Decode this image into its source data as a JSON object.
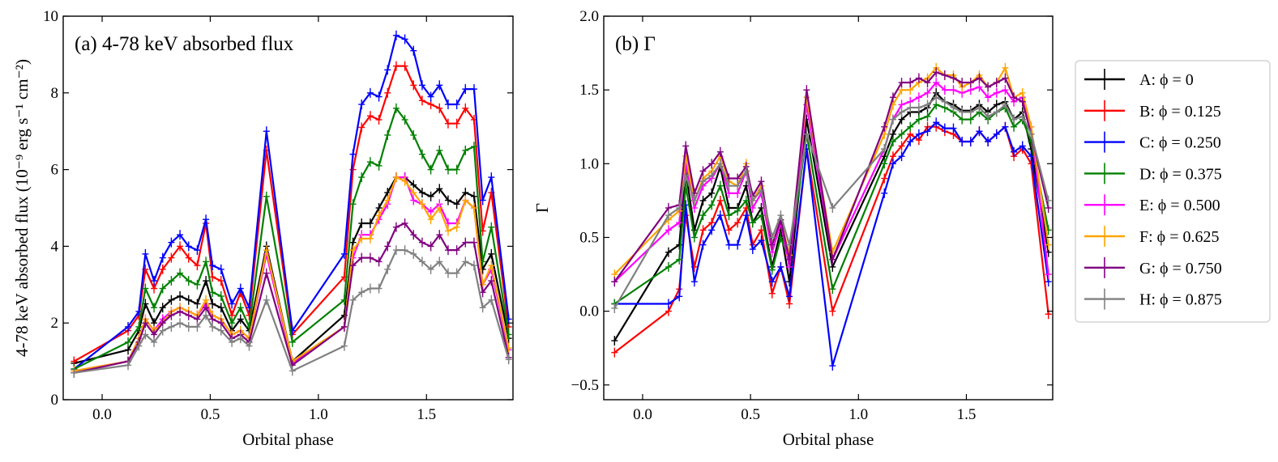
{
  "chart_data": [
    {
      "type": "line",
      "panel": "left",
      "title": "(a) 4-78 keV absorbed flux",
      "xlabel": "Orbital phase",
      "ylabel": "4-78 keV absorbed flux (10⁻⁹ erg s⁻¹ cm⁻²)",
      "xlim": [
        -0.18,
        1.9
      ],
      "ylim": [
        0,
        10
      ],
      "xticks": [
        0.0,
        0.5,
        1.0,
        1.5
      ],
      "xtick_labels": [
        "0.0",
        "0.5",
        "1.0",
        "1.5"
      ],
      "yticks": [
        0,
        2,
        4,
        6,
        8,
        10
      ],
      "ytick_labels": [
        "0",
        "2",
        "4",
        "6",
        "8",
        "10"
      ],
      "x": [
        -0.13,
        0.12,
        0.17,
        0.2,
        0.24,
        0.28,
        0.32,
        0.36,
        0.4,
        0.44,
        0.48,
        0.51,
        0.55,
        0.6,
        0.64,
        0.68,
        0.76,
        0.88,
        1.12,
        1.16,
        1.2,
        1.24,
        1.28,
        1.32,
        1.36,
        1.4,
        1.44,
        1.48,
        1.52,
        1.56,
        1.6,
        1.64,
        1.68,
        1.72,
        1.76,
        1.8,
        1.88
      ],
      "series": [
        {
          "name": "A",
          "color": "#000000",
          "values": [
            0.95,
            1.3,
            1.8,
            2.5,
            2.0,
            2.4,
            2.6,
            2.7,
            2.6,
            2.5,
            3.1,
            2.5,
            2.4,
            1.8,
            2.1,
            1.8,
            4.0,
            1.0,
            2.2,
            4.1,
            4.6,
            4.6,
            5.0,
            5.4,
            5.8,
            5.8,
            5.6,
            5.4,
            5.3,
            5.5,
            5.2,
            5.1,
            5.4,
            5.3,
            3.4,
            3.8,
            1.6
          ]
        },
        {
          "name": "B",
          "color": "#ff0000",
          "values": [
            1.0,
            1.8,
            2.2,
            3.4,
            2.9,
            3.4,
            3.7,
            4.0,
            3.7,
            3.5,
            4.6,
            3.2,
            3.1,
            2.2,
            2.8,
            2.2,
            6.5,
            1.7,
            3.2,
            6.0,
            7.1,
            7.4,
            7.3,
            8.0,
            8.7,
            8.7,
            8.2,
            7.8,
            7.7,
            7.6,
            7.2,
            7.2,
            7.6,
            7.3,
            4.4,
            5.4,
            1.9
          ]
        },
        {
          "name": "C",
          "color": "#0000ff",
          "values": [
            0.8,
            1.9,
            2.3,
            3.8,
            3.1,
            3.7,
            4.1,
            4.3,
            4.0,
            3.9,
            4.7,
            3.5,
            3.4,
            2.5,
            2.9,
            2.4,
            7.0,
            1.8,
            3.8,
            6.4,
            7.7,
            8.0,
            7.9,
            8.6,
            9.5,
            9.4,
            9.1,
            8.2,
            7.9,
            8.2,
            7.7,
            7.7,
            8.1,
            8.1,
            5.2,
            5.8,
            2.1
          ]
        },
        {
          "name": "D",
          "color": "#008000",
          "values": [
            0.8,
            1.5,
            1.9,
            2.9,
            2.4,
            2.9,
            3.1,
            3.3,
            3.1,
            3.0,
            3.6,
            2.8,
            2.7,
            2.0,
            2.4,
            1.9,
            5.3,
            1.5,
            2.6,
            5.1,
            5.8,
            6.2,
            6.1,
            6.9,
            7.6,
            7.3,
            6.9,
            6.4,
            6.0,
            6.5,
            6.0,
            6.0,
            6.5,
            6.6,
            3.6,
            4.5,
            1.7
          ]
        },
        {
          "name": "E",
          "color": "#ff00ff",
          "values": [
            0.75,
            1.0,
            1.6,
            2.1,
            1.8,
            2.1,
            2.3,
            2.4,
            2.3,
            2.2,
            2.5,
            2.2,
            2.1,
            1.7,
            1.8,
            1.6,
            3.8,
            0.95,
            1.9,
            3.7,
            4.3,
            4.3,
            4.7,
            5.1,
            5.8,
            5.8,
            5.2,
            5.1,
            4.9,
            5.1,
            4.6,
            4.6,
            5.2,
            5.0,
            3.0,
            3.4,
            1.3
          ]
        },
        {
          "name": "F",
          "color": "#ffa500",
          "values": [
            0.75,
            1.0,
            1.6,
            2.1,
            1.8,
            2.0,
            2.3,
            2.4,
            2.3,
            2.2,
            2.6,
            2.2,
            2.1,
            1.7,
            1.8,
            1.6,
            3.9,
            1.0,
            1.9,
            3.9,
            4.2,
            4.2,
            4.8,
            5.2,
            5.8,
            5.7,
            5.4,
            5.1,
            4.7,
            5.0,
            4.4,
            4.5,
            5.2,
            5.0,
            3.0,
            3.5,
            1.35
          ]
        },
        {
          "name": "G",
          "color": "#800080",
          "values": [
            0.7,
            1.0,
            1.5,
            2.0,
            1.7,
            2.0,
            2.2,
            2.3,
            2.2,
            2.1,
            2.4,
            2.1,
            2.0,
            1.6,
            1.7,
            1.5,
            3.3,
            0.9,
            1.9,
            3.5,
            3.7,
            3.7,
            3.6,
            4.0,
            4.5,
            4.6,
            4.3,
            4.1,
            4.0,
            4.3,
            3.9,
            3.9,
            4.1,
            4.1,
            2.8,
            3.1,
            1.1
          ]
        },
        {
          "name": "H",
          "color": "#808080",
          "values": [
            0.7,
            0.9,
            1.4,
            1.7,
            1.5,
            1.8,
            1.9,
            2.0,
            1.9,
            1.9,
            2.2,
            1.9,
            1.8,
            1.5,
            1.6,
            1.4,
            2.6,
            0.75,
            1.4,
            2.6,
            2.8,
            2.9,
            2.9,
            3.4,
            3.9,
            3.9,
            3.8,
            3.6,
            3.4,
            3.6,
            3.3,
            3.3,
            3.6,
            3.5,
            2.4,
            2.6,
            1.05
          ]
        }
      ]
    },
    {
      "type": "line",
      "panel": "right",
      "title": "(b) Γ",
      "xlabel": "Orbital phase",
      "ylabel": "Γ",
      "xlim": [
        -0.18,
        1.9
      ],
      "ylim": [
        -0.6,
        2.0
      ],
      "xticks": [
        0.0,
        0.5,
        1.0,
        1.5
      ],
      "xtick_labels": [
        "0.0",
        "0.5",
        "1.0",
        "1.5"
      ],
      "yticks": [
        -0.5,
        0.0,
        0.5,
        1.0,
        1.5,
        2.0
      ],
      "ytick_labels": [
        "−0.5",
        "0.0",
        "0.5",
        "1.0",
        "1.5",
        "2.0"
      ],
      "x": [
        -0.13,
        0.12,
        0.17,
        0.2,
        0.24,
        0.28,
        0.32,
        0.36,
        0.4,
        0.44,
        0.48,
        0.51,
        0.55,
        0.6,
        0.64,
        0.68,
        0.76,
        0.88,
        1.12,
        1.16,
        1.2,
        1.24,
        1.28,
        1.32,
        1.36,
        1.4,
        1.44,
        1.48,
        1.52,
        1.56,
        1.6,
        1.64,
        1.68,
        1.72,
        1.76,
        1.8,
        1.88
      ],
      "series": [
        {
          "name": "A",
          "color": "#000000",
          "values": [
            -0.2,
            0.4,
            0.45,
            0.95,
            0.55,
            0.75,
            0.8,
            0.98,
            0.7,
            0.7,
            0.85,
            0.6,
            0.7,
            0.3,
            0.55,
            0.2,
            1.3,
            0.3,
            1.05,
            1.2,
            1.3,
            1.35,
            1.35,
            1.38,
            1.48,
            1.42,
            1.4,
            1.36,
            1.36,
            1.4,
            1.35,
            1.4,
            1.42,
            1.3,
            1.35,
            1.1,
            0.4
          ]
        },
        {
          "name": "B",
          "color": "#ff0000",
          "values": [
            -0.28,
            0.0,
            0.15,
            0.65,
            0.3,
            0.55,
            0.6,
            0.75,
            0.55,
            0.6,
            0.7,
            0.45,
            0.55,
            0.12,
            0.3,
            0.05,
            1.1,
            0.0,
            0.9,
            1.05,
            1.12,
            1.2,
            1.16,
            1.25,
            1.25,
            1.22,
            1.2,
            1.15,
            1.15,
            1.22,
            1.15,
            1.2,
            1.25,
            1.05,
            1.1,
            1.0,
            -0.02
          ]
        },
        {
          "name": "C",
          "color": "#0000ff",
          "values": [
            0.05,
            0.05,
            0.1,
            0.72,
            0.2,
            0.45,
            0.55,
            0.65,
            0.45,
            0.45,
            0.65,
            0.42,
            0.48,
            0.2,
            0.3,
            0.1,
            1.1,
            -0.37,
            0.8,
            1.0,
            1.05,
            1.15,
            1.2,
            1.22,
            1.28,
            1.24,
            1.24,
            1.15,
            1.15,
            1.22,
            1.15,
            1.2,
            1.25,
            1.08,
            1.12,
            1.05,
            0.2
          ]
        },
        {
          "name": "D",
          "color": "#008000",
          "values": [
            0.05,
            0.3,
            0.35,
            0.85,
            0.5,
            0.65,
            0.72,
            0.85,
            0.65,
            0.68,
            0.75,
            0.6,
            0.65,
            0.28,
            0.5,
            0.35,
            1.2,
            0.15,
            1.0,
            1.15,
            1.2,
            1.25,
            1.3,
            1.32,
            1.4,
            1.38,
            1.35,
            1.3,
            1.3,
            1.35,
            1.3,
            1.35,
            1.38,
            1.25,
            1.3,
            1.15,
            0.55
          ]
        },
        {
          "name": "E",
          "color": "#ff00ff",
          "values": [
            0.2,
            0.55,
            0.6,
            1.0,
            0.7,
            0.85,
            0.9,
            1.0,
            0.8,
            0.8,
            0.95,
            0.7,
            0.8,
            0.4,
            0.6,
            0.3,
            1.4,
            0.35,
            1.1,
            1.3,
            1.4,
            1.42,
            1.45,
            1.48,
            1.55,
            1.5,
            1.5,
            1.48,
            1.5,
            1.52,
            1.45,
            1.48,
            1.5,
            1.42,
            1.45,
            1.25,
            0.25
          ]
        },
        {
          "name": "F",
          "color": "#ffa500",
          "values": [
            0.25,
            0.62,
            0.68,
            1.05,
            0.75,
            0.9,
            0.95,
            1.05,
            0.88,
            0.85,
            1.0,
            0.75,
            0.85,
            0.45,
            0.62,
            0.38,
            1.45,
            0.4,
            1.2,
            1.4,
            1.5,
            1.5,
            1.55,
            1.58,
            1.65,
            1.6,
            1.6,
            1.52,
            1.55,
            1.6,
            1.52,
            1.55,
            1.65,
            1.45,
            1.48,
            1.25,
            0.45
          ]
        },
        {
          "name": "G",
          "color": "#800080",
          "values": [
            0.2,
            0.7,
            0.72,
            1.12,
            0.8,
            0.95,
            1.0,
            1.08,
            0.9,
            0.9,
            0.98,
            0.78,
            0.88,
            0.45,
            0.62,
            0.35,
            1.5,
            0.35,
            1.25,
            1.45,
            1.55,
            1.55,
            1.58,
            1.55,
            1.62,
            1.6,
            1.58,
            1.55,
            1.55,
            1.58,
            1.52,
            1.55,
            1.58,
            1.45,
            1.42,
            1.2,
            0.7
          ]
        },
        {
          "name": "H",
          "color": "#808080",
          "values": [
            0.02,
            0.65,
            0.7,
            0.92,
            0.75,
            0.88,
            0.92,
            1.0,
            0.85,
            0.85,
            0.95,
            0.75,
            0.82,
            0.5,
            0.65,
            0.45,
            1.2,
            0.7,
            1.1,
            1.3,
            1.35,
            1.38,
            1.38,
            1.4,
            1.45,
            1.42,
            1.38,
            1.35,
            1.35,
            1.38,
            1.32,
            1.35,
            1.4,
            1.3,
            1.32,
            1.2,
            0.75
          ]
        }
      ]
    }
  ],
  "legend": {
    "placement": "right",
    "entries": [
      {
        "label": "A: ϕ = 0",
        "color": "#000000"
      },
      {
        "label": "B: ϕ = 0.125",
        "color": "#ff0000"
      },
      {
        "label": "C: ϕ = 0.250",
        "color": "#0000ff"
      },
      {
        "label": "D: ϕ = 0.375",
        "color": "#008000"
      },
      {
        "label": "E: ϕ = 0.500",
        "color": "#ff00ff"
      },
      {
        "label": "F: ϕ = 0.625",
        "color": "#ffa500"
      },
      {
        "label": "G: ϕ = 0.750",
        "color": "#800080"
      },
      {
        "label": "H: ϕ = 0.875",
        "color": "#808080"
      }
    ]
  }
}
